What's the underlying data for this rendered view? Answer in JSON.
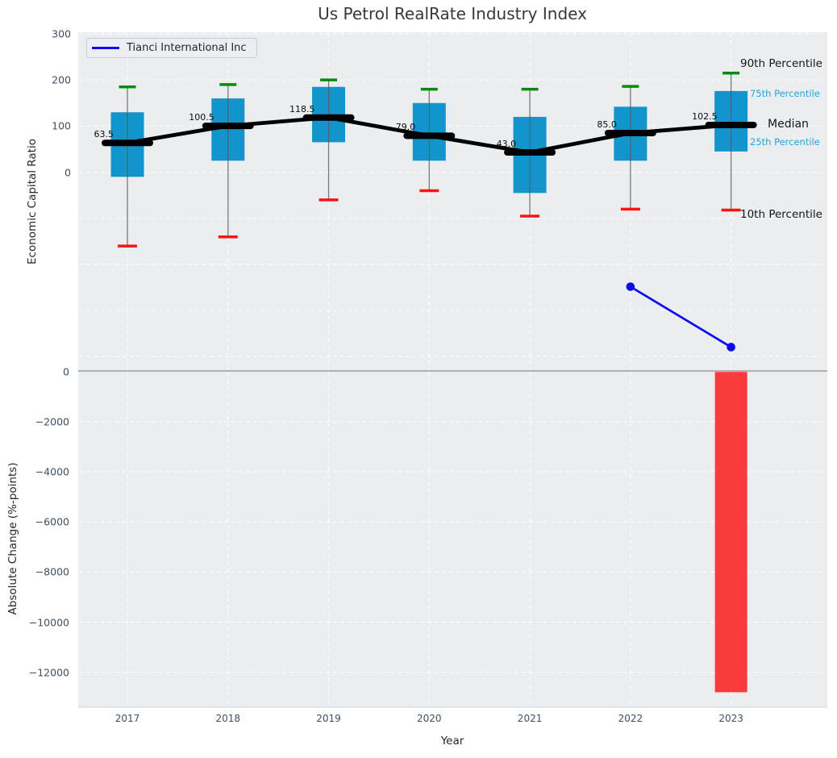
{
  "title": "Us Petrol RealRate Industry Index",
  "legend": {
    "label": "Tianci International Inc"
  },
  "top_chart": {
    "ylabel": "Economic Capital Ratio",
    "yticks": [
      {
        "label": "300",
        "value": 300
      },
      {
        "label": "200",
        "value": 200
      },
      {
        "label": "100",
        "value": 100
      },
      {
        "label": "0",
        "value": 0
      }
    ],
    "annotations": {
      "p90": "90th Percentile",
      "p75": "75th Percentile",
      "median": "Median",
      "p25": "25th Percentile",
      "p10": "10th Percentile"
    }
  },
  "bottom_chart": {
    "ylabel": "Absolute Change (%-points)",
    "xlabel": "Year",
    "yticks": [
      {
        "label": "0",
        "value": 0
      },
      {
        "label": "−2000",
        "value": -2000
      },
      {
        "label": "−4000",
        "value": -4000
      },
      {
        "label": "−6000",
        "value": -6000
      },
      {
        "label": "−8000",
        "value": -8000
      },
      {
        "label": "−10000",
        "value": -10000
      },
      {
        "label": "−12000",
        "value": -12000
      }
    ]
  },
  "chart_data": [
    {
      "type": "boxplot",
      "title": "Us Petrol RealRate Industry Index",
      "ylabel": "Economic Capital Ratio",
      "xlabel": "Year",
      "categories": [
        "2017",
        "2018",
        "2019",
        "2020",
        "2021",
        "2022",
        "2023"
      ],
      "series": [
        {
          "name": "90th Percentile",
          "values": [
            185,
            190,
            200,
            180,
            180,
            186,
            215
          ]
        },
        {
          "name": "75th Percentile",
          "values": [
            130,
            160,
            185,
            150,
            120,
            142,
            176
          ]
        },
        {
          "name": "Median",
          "values": [
            63.5,
            100.5,
            118.5,
            79.0,
            43.0,
            85.0,
            102.5
          ]
        },
        {
          "name": "25th Percentile",
          "values": [
            -10,
            25,
            65,
            25,
            -45,
            25,
            45
          ]
        },
        {
          "name": "10th Percentile",
          "values": [
            -160,
            -140,
            -60,
            -40,
            -95,
            -80,
            -82
          ]
        }
      ],
      "median_labels": [
        "63.5",
        "100.5",
        "118.5",
        "79.0",
        "43.0",
        "85.0",
        "102.5"
      ],
      "company_line": {
        "name": "Tianci International Inc",
        "years": [
          "2022",
          "2023"
        ],
        "values": [
          -248,
          -379
        ]
      },
      "ylim": [
        -430,
        310
      ],
      "yticks_shown": [
        0,
        100,
        200,
        300
      ],
      "grid": true,
      "legend_position": "upper left"
    },
    {
      "type": "bar",
      "ylabel": "Absolute Change (%-points)",
      "xlabel": "Year",
      "categories": [
        "2017",
        "2018",
        "2019",
        "2020",
        "2021",
        "2022",
        "2023"
      ],
      "values": [
        null,
        null,
        null,
        null,
        null,
        null,
        -12800
      ],
      "ylim": [
        -13450,
        100
      ],
      "grid": true
    }
  ],
  "colors": {
    "box_fill": "#1295cb",
    "whisker": "#5a5a5a",
    "cap_high": "#078a07",
    "cap_low": "#f71414",
    "median_line": "#000000",
    "company_line": "#0b0bee",
    "bar_negative": "#f93b3d",
    "plot_background": "#ebeef0",
    "gridline": "#ffffff",
    "zero_line": "#a5a9ac",
    "tick_label": "#3e4f63",
    "annotation_blue": "#27a3db",
    "annotation_black": "#151515"
  }
}
